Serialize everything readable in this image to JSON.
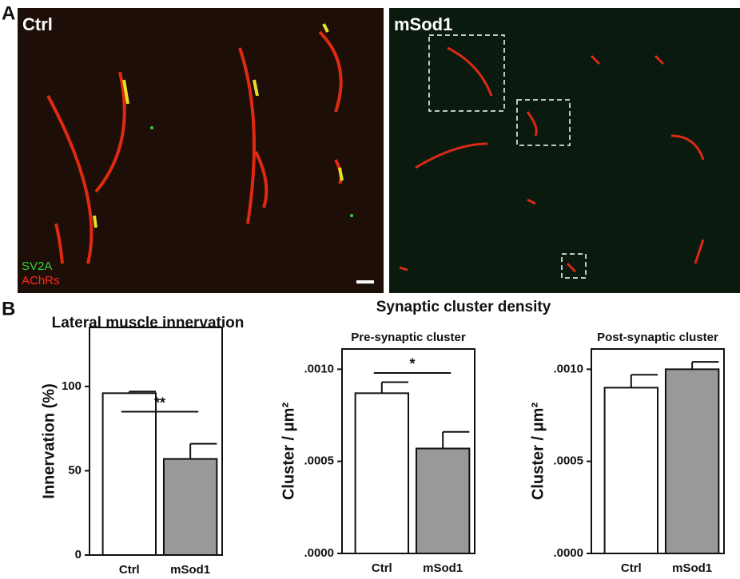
{
  "panel_a": {
    "label": "A",
    "images": [
      {
        "title": "Ctrl",
        "legend": [
          "SV2A",
          "AChRs"
        ]
      },
      {
        "title": "mSod1"
      }
    ]
  },
  "panel_b": {
    "label": "B",
    "group_title": "Synaptic cluster density"
  },
  "chart_data": [
    {
      "type": "bar",
      "title": "Lateral muscle innervation",
      "y_label": "Innervation (%)",
      "categories": [
        "Ctrl",
        "mSod1"
      ],
      "values": [
        96,
        57
      ],
      "errors": [
        1,
        9
      ],
      "colors": [
        "#ffffff",
        "#999999"
      ],
      "ylim": [
        0,
        135
      ],
      "yticks": [
        0,
        50,
        100
      ],
      "significance": {
        "label": "**",
        "y": 85
      }
    },
    {
      "type": "bar",
      "title": "Pre-synaptic cluster",
      "y_label": "Cluster / μm²",
      "categories": [
        "Ctrl",
        "mSod1"
      ],
      "values": [
        0.00087,
        0.00057
      ],
      "errors": [
        6e-05,
        9e-05
      ],
      "colors": [
        "#ffffff",
        "#999999"
      ],
      "ylim": [
        0,
        0.00111
      ],
      "yticks": [
        {
          "value": 0,
          "label": ".0000"
        },
        {
          "value": 0.0005,
          "label": ".0005"
        },
        {
          "value": 0.001,
          "label": ".0010"
        }
      ],
      "significance": {
        "label": "*",
        "y": 0.00098
      }
    },
    {
      "type": "bar",
      "title": "Post-synaptic cluster",
      "y_label": "Cluster / μm²",
      "categories": [
        "Ctrl",
        "mSod1"
      ],
      "values": [
        0.0009,
        0.001
      ],
      "errors": [
        7e-05,
        4e-05
      ],
      "colors": [
        "#ffffff",
        "#999999"
      ],
      "ylim": [
        0,
        0.00111
      ],
      "yticks": [
        {
          "value": 0,
          "label": ".0000"
        },
        {
          "value": 0.0005,
          "label": ".0005"
        },
        {
          "value": 0.001,
          "label": ".0010"
        }
      ]
    }
  ]
}
